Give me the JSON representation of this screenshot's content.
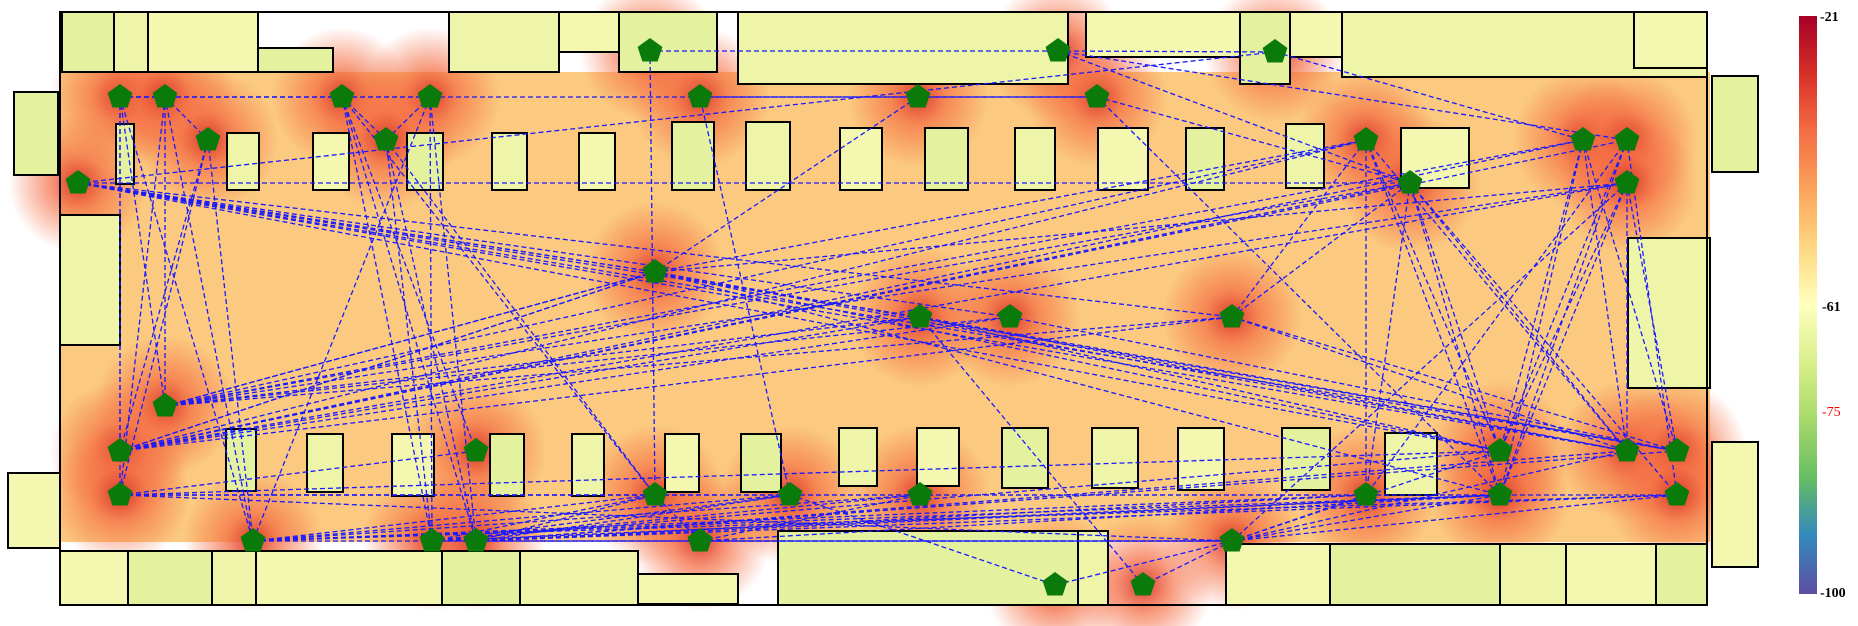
{
  "colorbar": {
    "label_max": "-21",
    "label_mid": "-61",
    "label_threshold": "-75",
    "label_min": "-100",
    "threshold_color": "#ff0000",
    "stops": [
      "#a50026",
      "#d73027",
      "#f46d43",
      "#fdae61",
      "#fee08b",
      "#ffffbf",
      "#d9ef8b",
      "#a6d96a",
      "#66bd63",
      "#3288bd",
      "#5e4fa2"
    ]
  },
  "heatmap_colors": {
    "hot": "#e9432c",
    "warm": "#f68a4e",
    "mild": "#fbc97f",
    "cool": "#fdeaa4",
    "room": "#eef5a8",
    "room_dark": "#bfe08a"
  },
  "node_color": "#0a7a0a",
  "link_color": "#1a1aff",
  "icons": {
    "node": "pentagon-icon"
  }
}
